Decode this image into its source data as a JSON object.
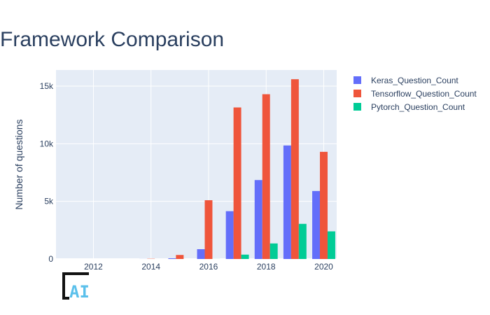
{
  "chart_data": {
    "type": "bar",
    "title": "Framework Comparison",
    "xlabel": "",
    "ylabel": "Number of questions",
    "x": [
      2011,
      2012,
      2013,
      2014,
      2015,
      2016,
      2017,
      2018,
      2019,
      2020
    ],
    "x_ticks": [
      2012,
      2014,
      2016,
      2018,
      2020
    ],
    "xlim": [
      2010.7,
      2020.45
    ],
    "y_ticks": [
      0,
      5000,
      10000,
      15000
    ],
    "y_tick_labels": [
      "0",
      "5k",
      "10k",
      "15k"
    ],
    "ylim": [
      0,
      16400
    ],
    "grid": true,
    "legend_position": "top-right",
    "series": [
      {
        "name": "Keras_Question_Count",
        "color": "#636efa",
        "values": [
          0,
          0,
          0,
          5,
          60,
          850,
          4150,
          6850,
          9850,
          5900
        ]
      },
      {
        "name": "Tensorflow_Question_Count",
        "color": "#ef553b",
        "values": [
          0,
          0,
          0,
          20,
          350,
          5100,
          13150,
          14300,
          15600,
          9300
        ]
      },
      {
        "name": "Pytorch_Question_Count",
        "color": "#00cc96",
        "values": [
          0,
          0,
          0,
          0,
          0,
          5,
          380,
          1350,
          3050,
          2400
        ]
      }
    ]
  },
  "logo": {
    "text": "AI"
  }
}
